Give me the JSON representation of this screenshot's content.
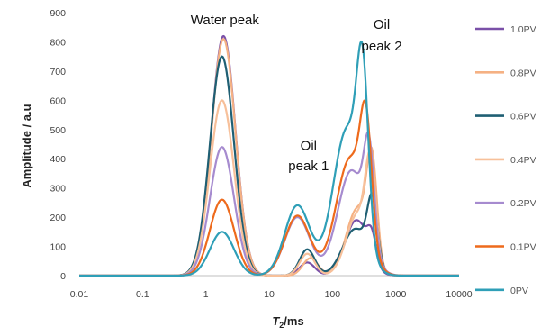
{
  "chart_data": {
    "type": "line",
    "xscale": "log",
    "xlim": [
      0.01,
      10000
    ],
    "ylim": [
      0,
      900
    ],
    "xticks": [
      "0.01",
      "0.1",
      "1",
      "10",
      "100",
      "1000",
      "10000"
    ],
    "yticks": [
      "0",
      "100",
      "200",
      "300",
      "400",
      "500",
      "600",
      "700",
      "800",
      "900"
    ],
    "xlabel_main": "T",
    "xlabel_sub": "2",
    "xlabel_unit": "/ms",
    "ylabel": "Amplitude / a.u",
    "grid": false,
    "legend_position": "right",
    "annotations": [
      {
        "text": "Water peak",
        "x": 2,
        "y": 860
      },
      {
        "text": "Oil",
        "x": 42,
        "y": 430
      },
      {
        "text": "peak 1",
        "x": 42,
        "y": 360
      },
      {
        "text": "Oil",
        "x": 600,
        "y": 845
      },
      {
        "text": "peak 2",
        "x": 600,
        "y": 770
      }
    ],
    "series": [
      {
        "name": "1.0PV",
        "color": "#7a50a8",
        "peaks": [
          {
            "x": 1.9,
            "y": 820,
            "w": 0.19
          },
          {
            "x": 40,
            "y": 45,
            "w": 0.12
          },
          {
            "x": 240,
            "y": 190,
            "w": 0.18
          },
          {
            "x": 420,
            "y": 85,
            "w": 0.07
          }
        ]
      },
      {
        "name": "0.8PV",
        "color": "#f5b183",
        "peaks": [
          {
            "x": 1.9,
            "y": 810,
            "w": 0.19
          },
          {
            "x": 45,
            "y": 60,
            "w": 0.12
          },
          {
            "x": 250,
            "y": 230,
            "w": 0.18
          },
          {
            "x": 420,
            "y": 330,
            "w": 0.08
          }
        ]
      },
      {
        "name": "0.6PV",
        "color": "#1f5f73",
        "peaks": [
          {
            "x": 1.8,
            "y": 750,
            "w": 0.19
          },
          {
            "x": 40,
            "y": 90,
            "w": 0.12
          },
          {
            "x": 230,
            "y": 160,
            "w": 0.2
          },
          {
            "x": 430,
            "y": 215,
            "w": 0.08
          }
        ]
      },
      {
        "name": "0.4PV",
        "color": "#f7c09a",
        "peaks": [
          {
            "x": 1.8,
            "y": 600,
            "w": 0.19
          },
          {
            "x": 40,
            "y": 75,
            "w": 0.12
          },
          {
            "x": 250,
            "y": 210,
            "w": 0.18
          },
          {
            "x": 400,
            "y": 310,
            "w": 0.08
          }
        ]
      },
      {
        "name": "0.2PV",
        "color": "#a68bcf",
        "peaks": [
          {
            "x": 1.8,
            "y": 440,
            "w": 0.19
          },
          {
            "x": 28,
            "y": 200,
            "w": 0.2
          },
          {
            "x": 200,
            "y": 360,
            "w": 0.22
          },
          {
            "x": 380,
            "y": 320,
            "w": 0.08
          }
        ]
      },
      {
        "name": "0.1PV",
        "color": "#ee6a1c",
        "peaks": [
          {
            "x": 1.8,
            "y": 260,
            "w": 0.19
          },
          {
            "x": 28,
            "y": 205,
            "w": 0.2
          },
          {
            "x": 190,
            "y": 400,
            "w": 0.22
          },
          {
            "x": 340,
            "y": 380,
            "w": 0.09
          }
        ]
      },
      {
        "name": "0PV",
        "color": "#2f9fb7",
        "peaks": [
          {
            "x": 1.8,
            "y": 150,
            "w": 0.19
          },
          {
            "x": 28,
            "y": 240,
            "w": 0.2
          },
          {
            "x": 170,
            "y": 500,
            "w": 0.22
          },
          {
            "x": 300,
            "y": 520,
            "w": 0.09
          }
        ]
      }
    ]
  }
}
